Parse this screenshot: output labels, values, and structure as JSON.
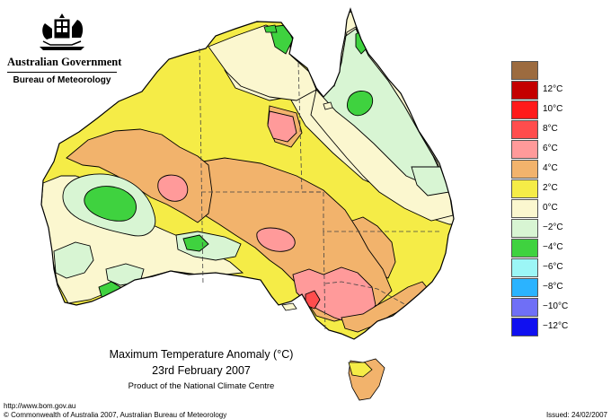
{
  "header": {
    "government": "Australian Government",
    "bureau": "Bureau of Meteorology"
  },
  "map": {
    "title": "Maximum Temperature Anomaly (°C)",
    "date": "23rd February 2007",
    "subtitle": "Product of the National Climate Centre"
  },
  "legend": {
    "items": [
      {
        "label": "",
        "color": "#9c6b3f"
      },
      {
        "label": "12°C",
        "color": "#c40000"
      },
      {
        "label": "10°C",
        "color": "#ff1a1a"
      },
      {
        "label": "8°C",
        "color": "#ff4d4d"
      },
      {
        "label": "6°C",
        "color": "#ff9a9a"
      },
      {
        "label": "4°C",
        "color": "#f2b36c"
      },
      {
        "label": "2°C",
        "color": "#f5ec47"
      },
      {
        "label": "0°C",
        "color": "#fbf7cf"
      },
      {
        "label": "−2°C",
        "color": "#d8f5d3"
      },
      {
        "label": "−4°C",
        "color": "#3fd23f"
      },
      {
        "label": "−6°C",
        "color": "#9cf6f6"
      },
      {
        "label": "−8°C",
        "color": "#2bb3ff"
      },
      {
        "label": "−10°C",
        "color": "#6f6ff6"
      },
      {
        "label": "−12°C",
        "color": "#1010f0"
      }
    ]
  },
  "footer": {
    "url": "http://www.bom.gov.au",
    "copyright": "© Commonwealth of Australia 2007, Australian Bureau of Meteorology",
    "issued": "Issued: 24/02/2007"
  }
}
